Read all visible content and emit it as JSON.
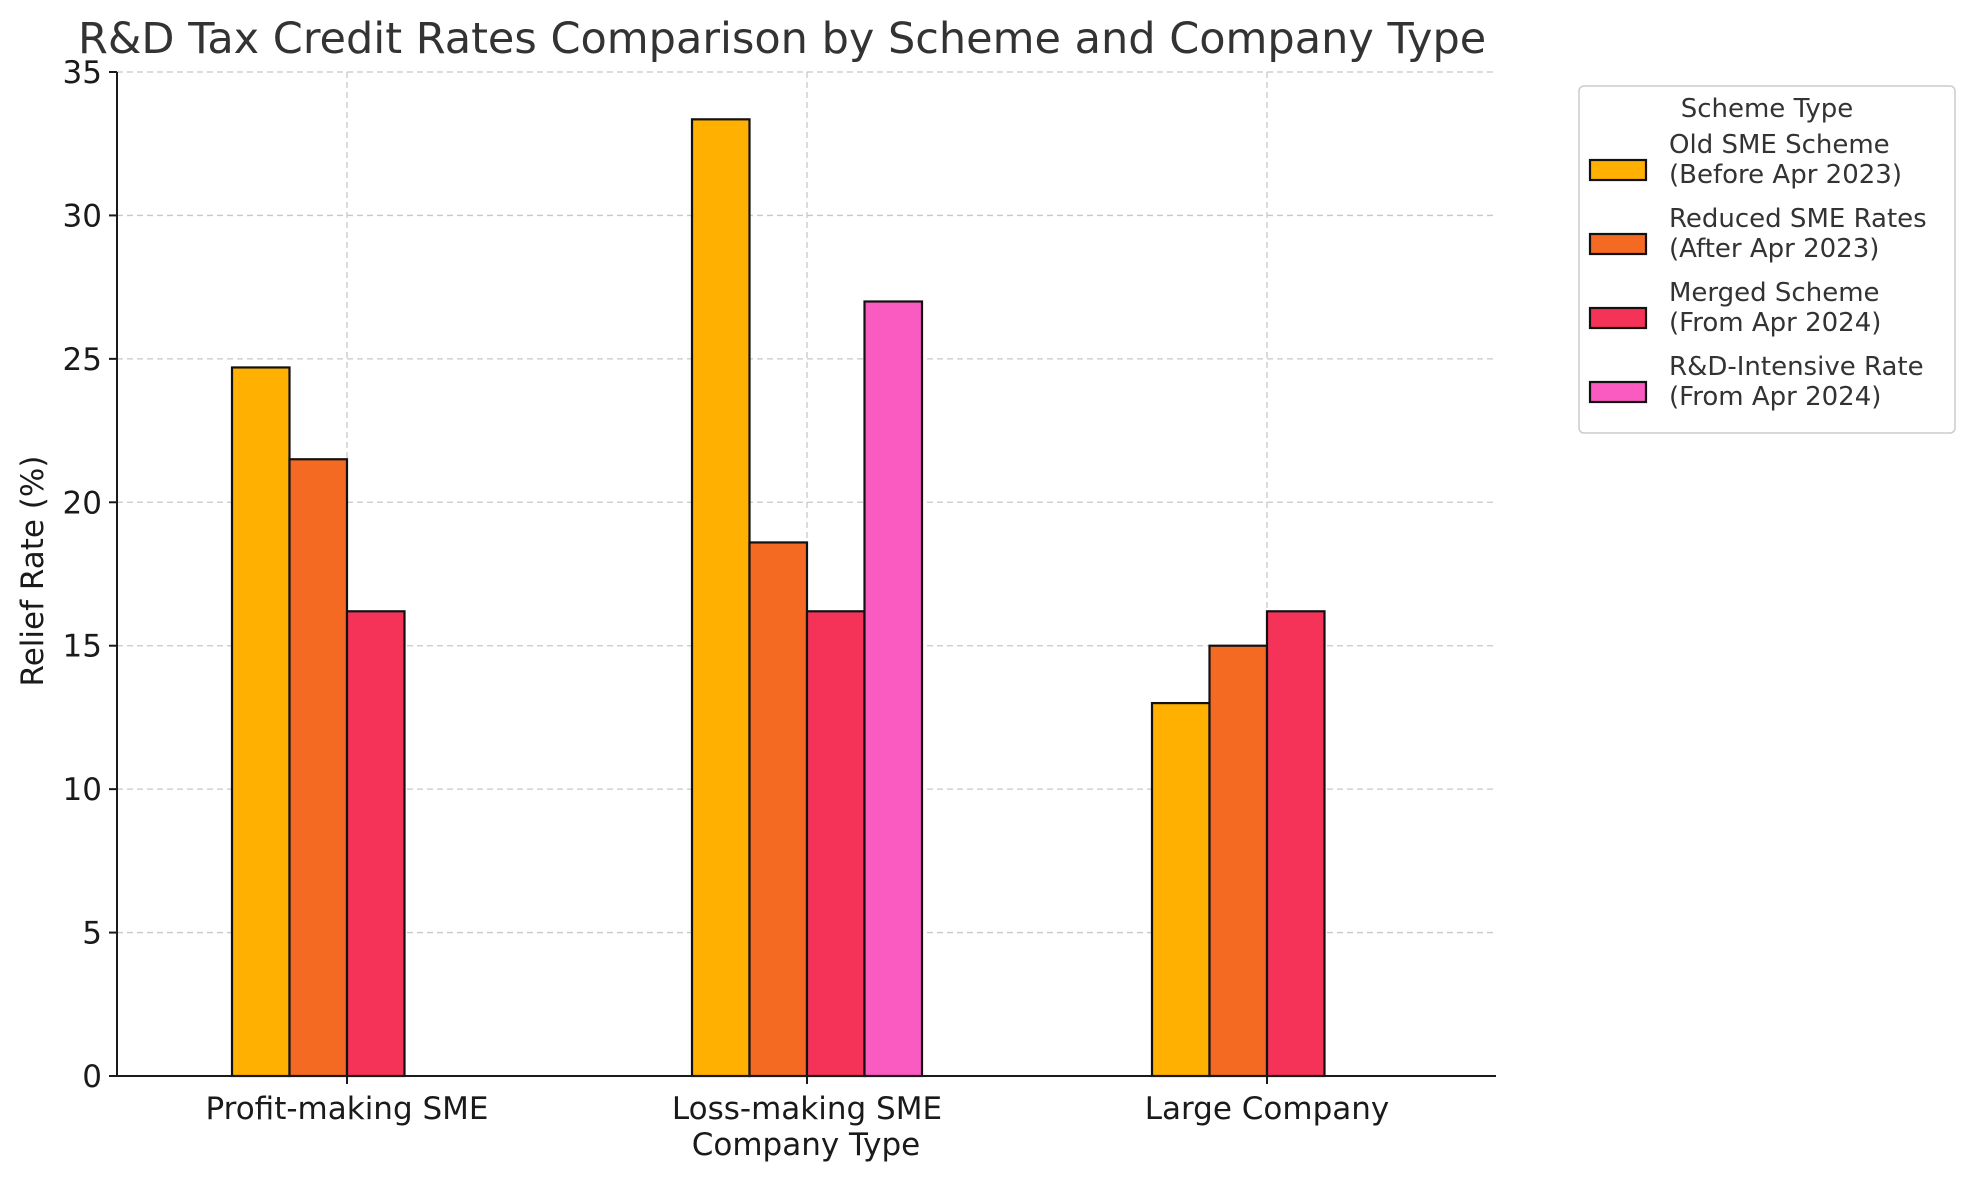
{
  "chart_data": {
    "type": "bar",
    "title": "R&D Tax Credit Rates Comparison by Scheme and Company Type",
    "xlabel": "Company Type",
    "ylabel": "Relief Rate (%)",
    "ylim": [
      0,
      35
    ],
    "yticks": [
      0,
      5,
      10,
      15,
      20,
      25,
      30,
      35
    ],
    "grid": true,
    "categories": [
      "Profit-making SME",
      "Loss-making SME",
      "Large Company"
    ],
    "series": [
      {
        "name_lines": [
          "Old SME Scheme",
          "(Before Apr 2023)"
        ],
        "color": "#FFB000",
        "values": [
          24.7,
          33.35,
          13.0
        ]
      },
      {
        "name_lines": [
          "Reduced SME Rates",
          "(After Apr 2023)"
        ],
        "color": "#F46A22",
        "values": [
          21.5,
          18.6,
          15.0
        ]
      },
      {
        "name_lines": [
          "Merged Scheme",
          "(From Apr 2024)"
        ],
        "color": "#F53358",
        "values": [
          16.2,
          16.2,
          16.2
        ]
      },
      {
        "name_lines": [
          "R&D-Intensive Rate",
          "(From Apr 2024)"
        ],
        "color": "#F95BC1",
        "values": [
          null,
          27.0,
          null
        ]
      }
    ],
    "legend": {
      "title": "Scheme Type",
      "placement": "outside-top-right"
    }
  }
}
